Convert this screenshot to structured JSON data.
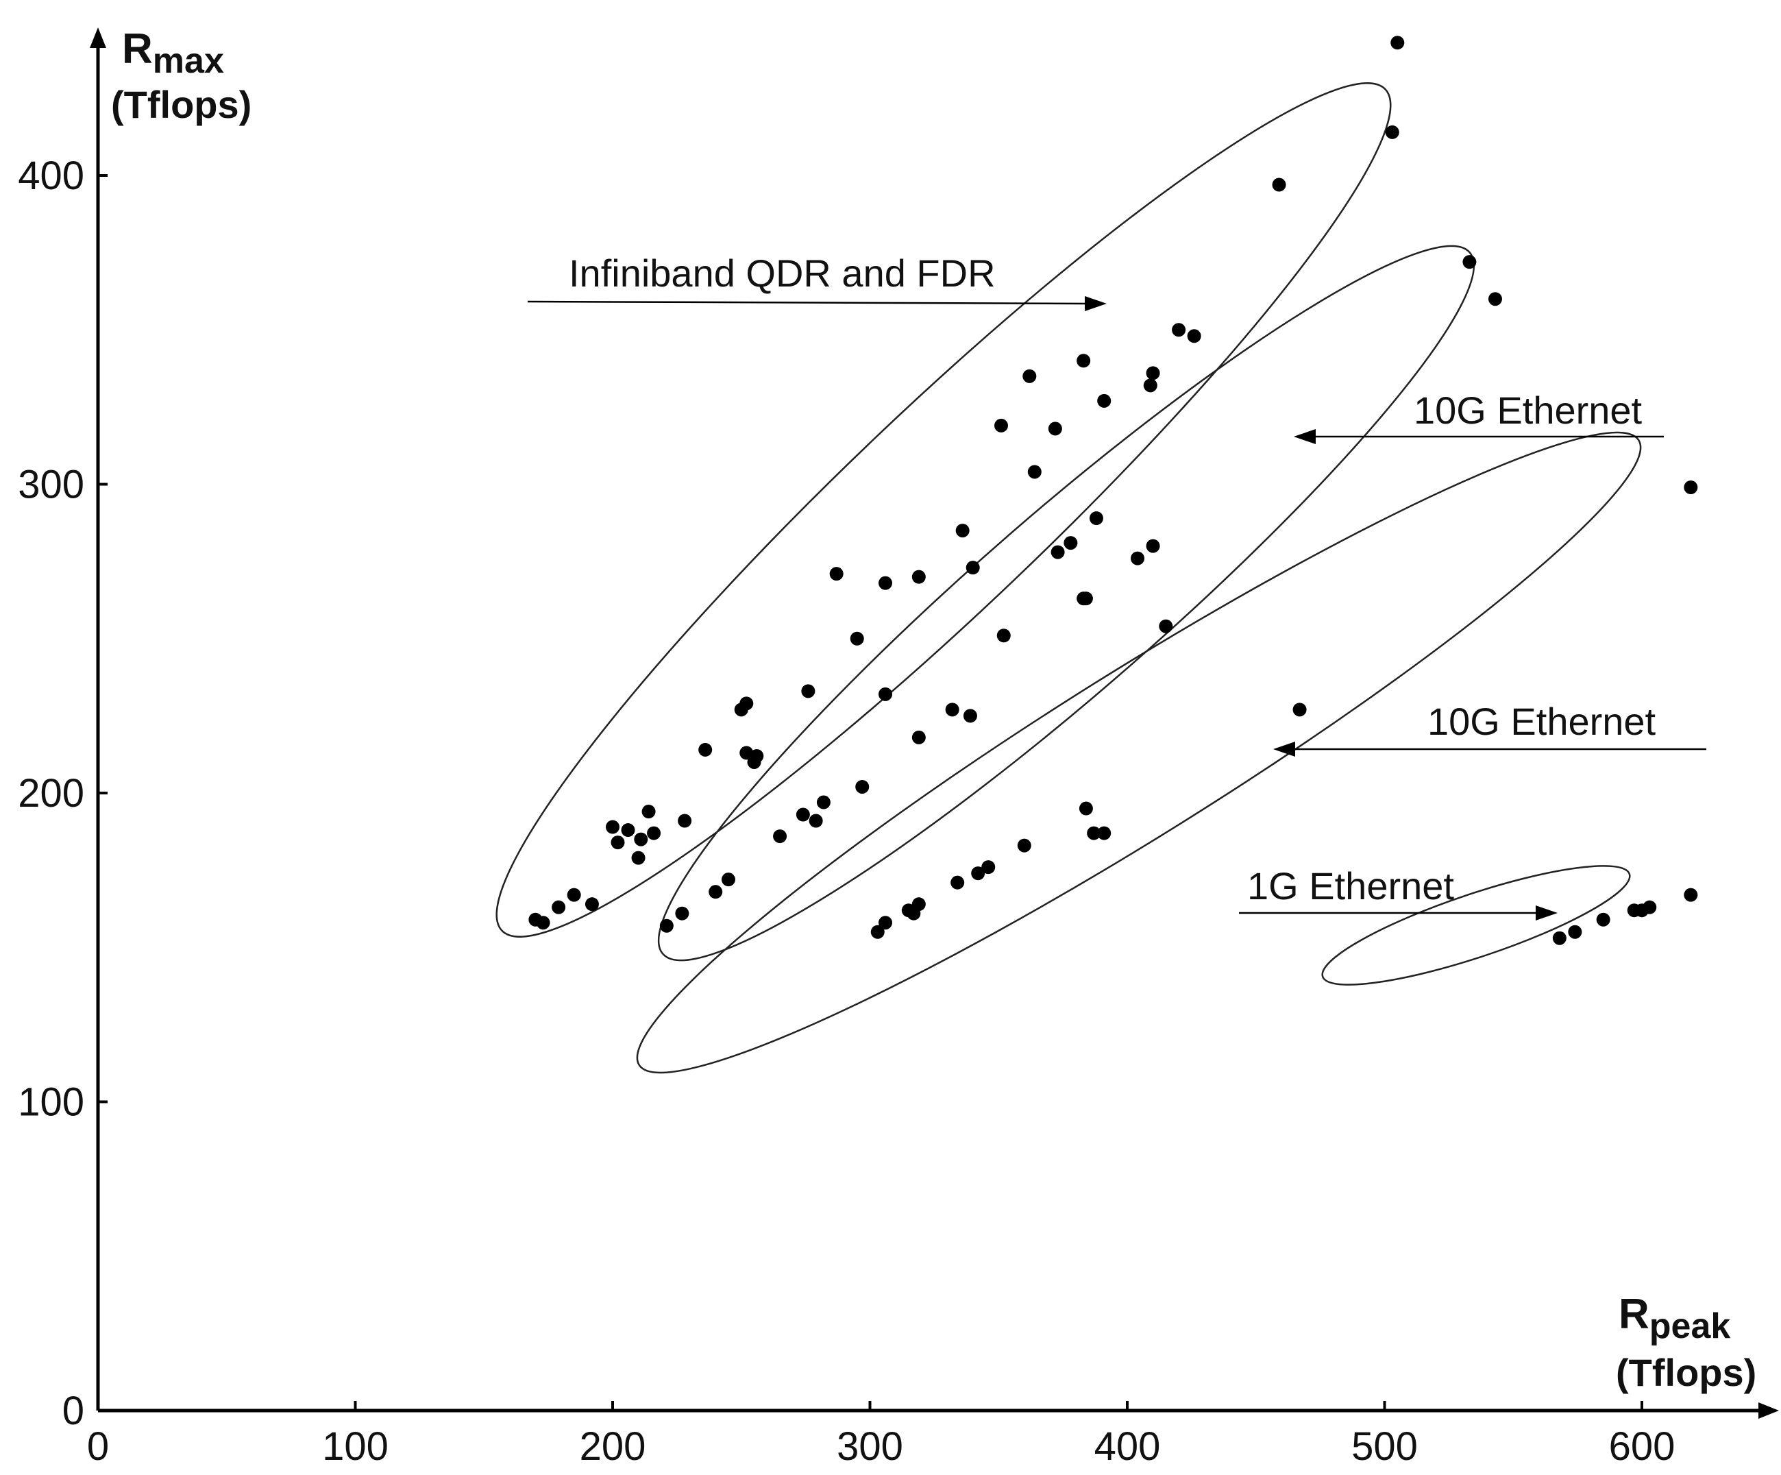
{
  "chart_data": {
    "type": "scatter",
    "title": "",
    "xlabel": {
      "main": "R",
      "sub": "peak",
      "unit": "(Tflops)"
    },
    "ylabel": {
      "main": "R",
      "sub": "max",
      "unit": "(Tflops)"
    },
    "xlim": [
      0,
      650
    ],
    "ylim": [
      0,
      450
    ],
    "xticks": [
      0,
      100,
      200,
      300,
      400,
      500,
      600
    ],
    "yticks": [
      0,
      100,
      200,
      300,
      400
    ],
    "grid": false,
    "points": [
      [
        170,
        159
      ],
      [
        173,
        158
      ],
      [
        179,
        163
      ],
      [
        185,
        167
      ],
      [
        192,
        164
      ],
      [
        200,
        189
      ],
      [
        202,
        184
      ],
      [
        206,
        188
      ],
      [
        210,
        179
      ],
      [
        211,
        185
      ],
      [
        214,
        194
      ],
      [
        216,
        187
      ],
      [
        228,
        191
      ],
      [
        236,
        214
      ],
      [
        250,
        227
      ],
      [
        252,
        229
      ],
      [
        252,
        213
      ],
      [
        255,
        210
      ],
      [
        256,
        212
      ],
      [
        276,
        233
      ],
      [
        287,
        271
      ],
      [
        295,
        250
      ],
      [
        306,
        268
      ],
      [
        319,
        270
      ],
      [
        336,
        285
      ],
      [
        340,
        273
      ],
      [
        351,
        319
      ],
      [
        352,
        251
      ],
      [
        362,
        335
      ],
      [
        364,
        304
      ],
      [
        372,
        318
      ],
      [
        383,
        340
      ],
      [
        391,
        327
      ],
      [
        409,
        332
      ],
      [
        410,
        336
      ],
      [
        420,
        350
      ],
      [
        426,
        348
      ],
      [
        459,
        397
      ],
      [
        503,
        414
      ],
      [
        505,
        443
      ],
      [
        221,
        157
      ],
      [
        227,
        161
      ],
      [
        240,
        168
      ],
      [
        245,
        172
      ],
      [
        265,
        186
      ],
      [
        274,
        193
      ],
      [
        279,
        191
      ],
      [
        282,
        197
      ],
      [
        297,
        202
      ],
      [
        306,
        232
      ],
      [
        319,
        218
      ],
      [
        332,
        227
      ],
      [
        339,
        225
      ],
      [
        373,
        278
      ],
      [
        378,
        281
      ],
      [
        383,
        263
      ],
      [
        384,
        263
      ],
      [
        388,
        289
      ],
      [
        404,
        276
      ],
      [
        410,
        280
      ],
      [
        415,
        254
      ],
      [
        533,
        372
      ],
      [
        543,
        360
      ],
      [
        303,
        155
      ],
      [
        306,
        158
      ],
      [
        315,
        162
      ],
      [
        317,
        161
      ],
      [
        319,
        164
      ],
      [
        334,
        171
      ],
      [
        342,
        174
      ],
      [
        346,
        176
      ],
      [
        360,
        183
      ],
      [
        384,
        195
      ],
      [
        387,
        187
      ],
      [
        391,
        187
      ],
      [
        467,
        227
      ],
      [
        619,
        299
      ],
      [
        568,
        153
      ],
      [
        574,
        155
      ],
      [
        585,
        159
      ],
      [
        597,
        162
      ],
      [
        600,
        162
      ],
      [
        603,
        163
      ],
      [
        619,
        167
      ]
    ],
    "groups": [
      {
        "label": "Infiniband QDR and FDR"
      },
      {
        "label": "10G Ethernet"
      },
      {
        "label": "10G Ethernet"
      },
      {
        "label": "1G Ethernet"
      }
    ]
  }
}
